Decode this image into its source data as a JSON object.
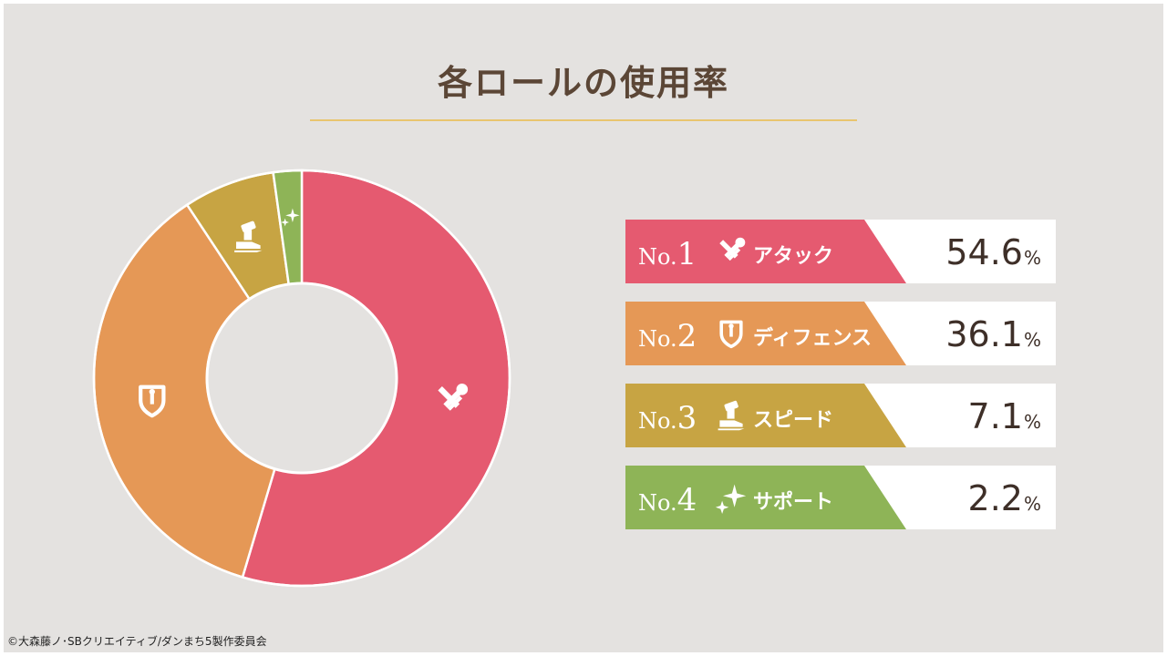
{
  "title": "各ロールの使用率",
  "copyright": "©大森藤ノ･SBクリエイティブ/ダンまち5製作委員会",
  "chart_data": {
    "type": "pie",
    "variant": "donut",
    "categories": [
      "アタック",
      "ディフェンス",
      "スピード",
      "サポート"
    ],
    "values": [
      54.6,
      36.1,
      7.1,
      2.2
    ],
    "unit": "%",
    "colors": [
      "#e55a70",
      "#e59856",
      "#c7a443",
      "#8eb457"
    ],
    "icons": [
      "attack-icon",
      "defense-icon",
      "speed-icon",
      "support-icon"
    ]
  },
  "rankings": [
    {
      "prefix": "No.",
      "number": "1",
      "role": "アタック",
      "value": "54.6",
      "unit": "%",
      "color": "#e55a70",
      "icon": "attack-icon"
    },
    {
      "prefix": "No.",
      "number": "2",
      "role": "ディフェンス",
      "value": "36.1",
      "unit": "%",
      "color": "#e59856",
      "icon": "defense-icon"
    },
    {
      "prefix": "No.",
      "number": "3",
      "role": "スピード",
      "value": "7.1",
      "unit": "%",
      "color": "#c7a443",
      "icon": "speed-icon"
    },
    {
      "prefix": "No.",
      "number": "4",
      "role": "サポート",
      "value": "2.2",
      "unit": "%",
      "color": "#8eb457",
      "icon": "support-icon"
    }
  ]
}
